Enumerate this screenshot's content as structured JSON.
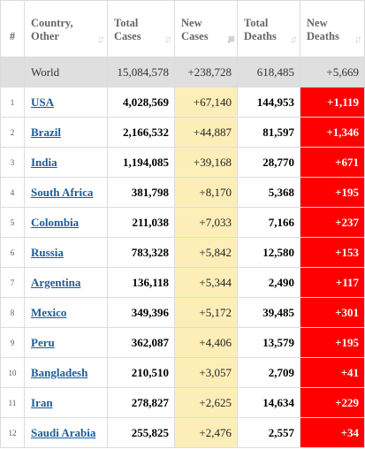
{
  "columns": {
    "idx": "#",
    "country": [
      "Country,",
      "Other"
    ],
    "total_cases": [
      "Total",
      "Cases"
    ],
    "new_cases": [
      "New",
      "Cases"
    ],
    "total_deaths": [
      "Total",
      "Deaths"
    ],
    "new_deaths": [
      "New",
      "Deaths"
    ]
  },
  "sort": {
    "column": "new_cases",
    "direction": "descending"
  },
  "icons": {
    "sort": "sort-arrows-icon",
    "sort_active": "sort-descending-icon"
  },
  "colors": {
    "new_cases_bg": "#fdeeb8",
    "new_deaths_bg": "#ff0000",
    "world_bg": "#dfdfdf",
    "link": "#1a5c9a"
  },
  "world": {
    "name": "World",
    "total_cases": "15,084,578",
    "new_cases": "+238,728",
    "total_deaths": "618,485",
    "new_deaths": "+5,669"
  },
  "rows": [
    {
      "idx": "1",
      "country": "USA",
      "total_cases": "4,028,569",
      "new_cases": "+67,140",
      "total_deaths": "144,953",
      "new_deaths": "+1,119"
    },
    {
      "idx": "2",
      "country": "Brazil",
      "total_cases": "2,166,532",
      "new_cases": "+44,887",
      "total_deaths": "81,597",
      "new_deaths": "+1,346"
    },
    {
      "idx": "3",
      "country": "India",
      "total_cases": "1,194,085",
      "new_cases": "+39,168",
      "total_deaths": "28,770",
      "new_deaths": "+671"
    },
    {
      "idx": "4",
      "country": "South Africa",
      "total_cases": "381,798",
      "new_cases": "+8,170",
      "total_deaths": "5,368",
      "new_deaths": "+195"
    },
    {
      "idx": "5",
      "country": "Colombia",
      "total_cases": "211,038",
      "new_cases": "+7,033",
      "total_deaths": "7,166",
      "new_deaths": "+237"
    },
    {
      "idx": "6",
      "country": "Russia",
      "total_cases": "783,328",
      "new_cases": "+5,842",
      "total_deaths": "12,580",
      "new_deaths": "+153"
    },
    {
      "idx": "7",
      "country": "Argentina",
      "total_cases": "136,118",
      "new_cases": "+5,344",
      "total_deaths": "2,490",
      "new_deaths": "+117"
    },
    {
      "idx": "8",
      "country": "Mexico",
      "total_cases": "349,396",
      "new_cases": "+5,172",
      "total_deaths": "39,485",
      "new_deaths": "+301"
    },
    {
      "idx": "9",
      "country": "Peru",
      "total_cases": "362,087",
      "new_cases": "+4,406",
      "total_deaths": "13,579",
      "new_deaths": "+195"
    },
    {
      "idx": "10",
      "country": "Bangladesh",
      "total_cases": "210,510",
      "new_cases": "+3,057",
      "total_deaths": "2,709",
      "new_deaths": "+41"
    },
    {
      "idx": "11",
      "country": "Iran",
      "total_cases": "278,827",
      "new_cases": "+2,625",
      "total_deaths": "14,634",
      "new_deaths": "+229"
    },
    {
      "idx": "12",
      "country": "Saudi Arabia",
      "total_cases": "255,825",
      "new_cases": "+2,476",
      "total_deaths": "2,557",
      "new_deaths": "+34"
    }
  ]
}
